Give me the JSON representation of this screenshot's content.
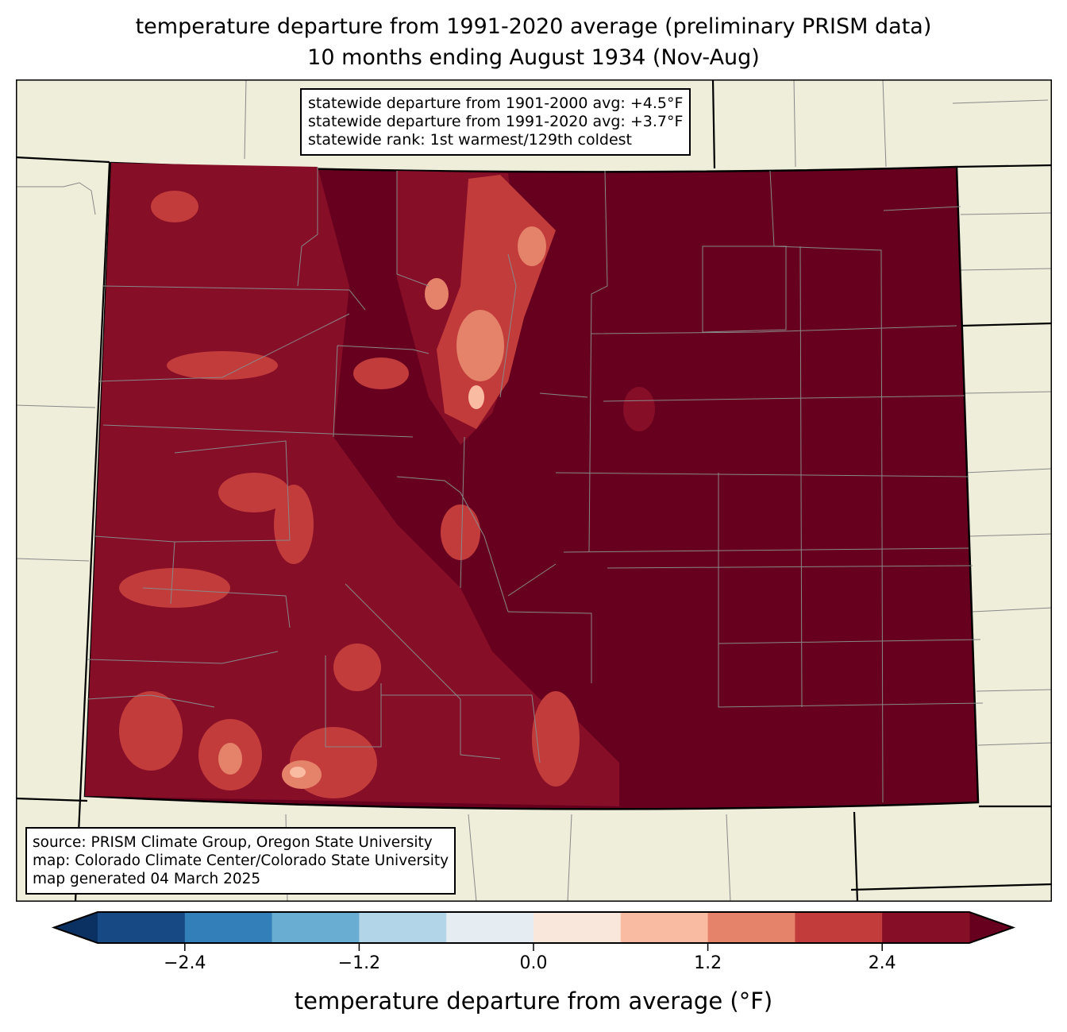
{
  "title": {
    "line1": "temperature departure from 1991-2020 average (preliminary PRISM data)",
    "line2": "10 months ending August 1934 (Nov-Aug)"
  },
  "stats": {
    "line1": "statewide departure from 1901-2000 avg: +4.5°F",
    "line2": "statewide departure from 1991-2020 avg: +3.7°F",
    "line3": "statewide rank: 1st warmest/129th coldest"
  },
  "source": {
    "line1": "source: PRISM Climate Group, Oregon State University",
    "line2": "map: Colorado Climate Center/Colorado State University",
    "line3": "map generated 04 March 2025"
  },
  "colorbar": {
    "label": "temperature departure from average (°F)",
    "range": [
      -3.0,
      3.0
    ],
    "bounds": [
      -3.0,
      -2.4,
      -1.8,
      -1.2,
      -0.6,
      0.0,
      0.6,
      1.2,
      1.8,
      2.4,
      3.0
    ],
    "colors": [
      "#174a84",
      "#327fba",
      "#6aadd2",
      "#b2d5e8",
      "#e5edf3",
      "#f9e7dc",
      "#f9bca3",
      "#e4826a",
      "#c33c3c",
      "#870e27"
    ],
    "under_color": "#0a3162",
    "over_color": "#67001f",
    "ticks": [
      {
        "value": -2.4,
        "label": "−2.4"
      },
      {
        "value": -1.2,
        "label": "−1.2"
      },
      {
        "value": 0.0,
        "label": "0.0"
      },
      {
        "value": 1.2,
        "label": "1.2"
      },
      {
        "value": 2.4,
        "label": "2.4"
      }
    ]
  },
  "map_colors": {
    "land": "#efeedb",
    "state_fill": "#67001f",
    "level_2_4": "#870e27",
    "level_1_8": "#c33c3c",
    "level_1_2": "#e4826a",
    "level_0_6": "#f9bca3"
  }
}
